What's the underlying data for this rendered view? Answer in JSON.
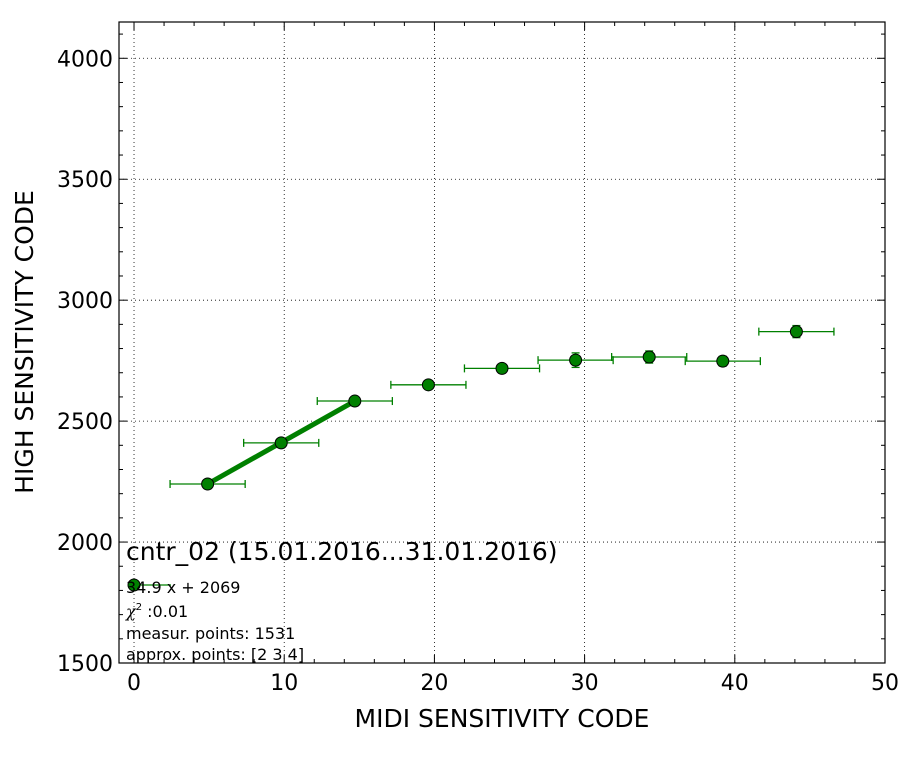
{
  "chart_data": {
    "type": "scatter",
    "xlabel": "MIDI SENSITIVITY CODE",
    "ylabel": "HIGH SENSITIVITY CODE",
    "xlim": [
      -1,
      50
    ],
    "ylim": [
      1500,
      4150
    ],
    "xticks": [
      0,
      10,
      20,
      30,
      40,
      50
    ],
    "yticks": [
      1500,
      2000,
      2500,
      3000,
      3500,
      4000
    ],
    "xtick_labels": [
      "0",
      "10",
      "20",
      "30",
      "40",
      "50"
    ],
    "ytick_labels": [
      "1500",
      "2000",
      "2500",
      "3000",
      "3500",
      "4000"
    ],
    "grid": true,
    "series": [
      {
        "type": "errorbar",
        "color": "#008000",
        "marker_fill": "#008000",
        "points": [
          {
            "x": 4.9,
            "y": 2240,
            "xerr": 2.5,
            "yerr": 8
          },
          {
            "x": 9.8,
            "y": 2410,
            "xerr": 2.5,
            "yerr": 10
          },
          {
            "x": 14.7,
            "y": 2583,
            "xerr": 2.5,
            "yerr": 10
          },
          {
            "x": 19.6,
            "y": 2650,
            "xerr": 2.5,
            "yerr": 10
          },
          {
            "x": 24.5,
            "y": 2718,
            "xerr": 2.5,
            "yerr": 12
          },
          {
            "x": 29.4,
            "y": 2752,
            "xerr": 2.5,
            "yerr": 30
          },
          {
            "x": 34.3,
            "y": 2765,
            "xerr": 2.5,
            "yerr": 25
          },
          {
            "x": 39.2,
            "y": 2748,
            "xerr": 2.5,
            "yerr": 20
          },
          {
            "x": 44.1,
            "y": 2870,
            "xerr": 2.5,
            "yerr": 25
          }
        ]
      },
      {
        "type": "line",
        "color": "#008000",
        "x": [
          4.9,
          14.7
        ],
        "y": [
          2240,
          2583
        ]
      }
    ],
    "annotation": {
      "title": "cntr_02 (15.01.2016...31.01.2016)",
      "lines": [
        "34.9 x + 2069",
        "measur. points: 1531",
        "approx. points: [2 3 4]"
      ],
      "chi_value": " :0.01"
    }
  }
}
